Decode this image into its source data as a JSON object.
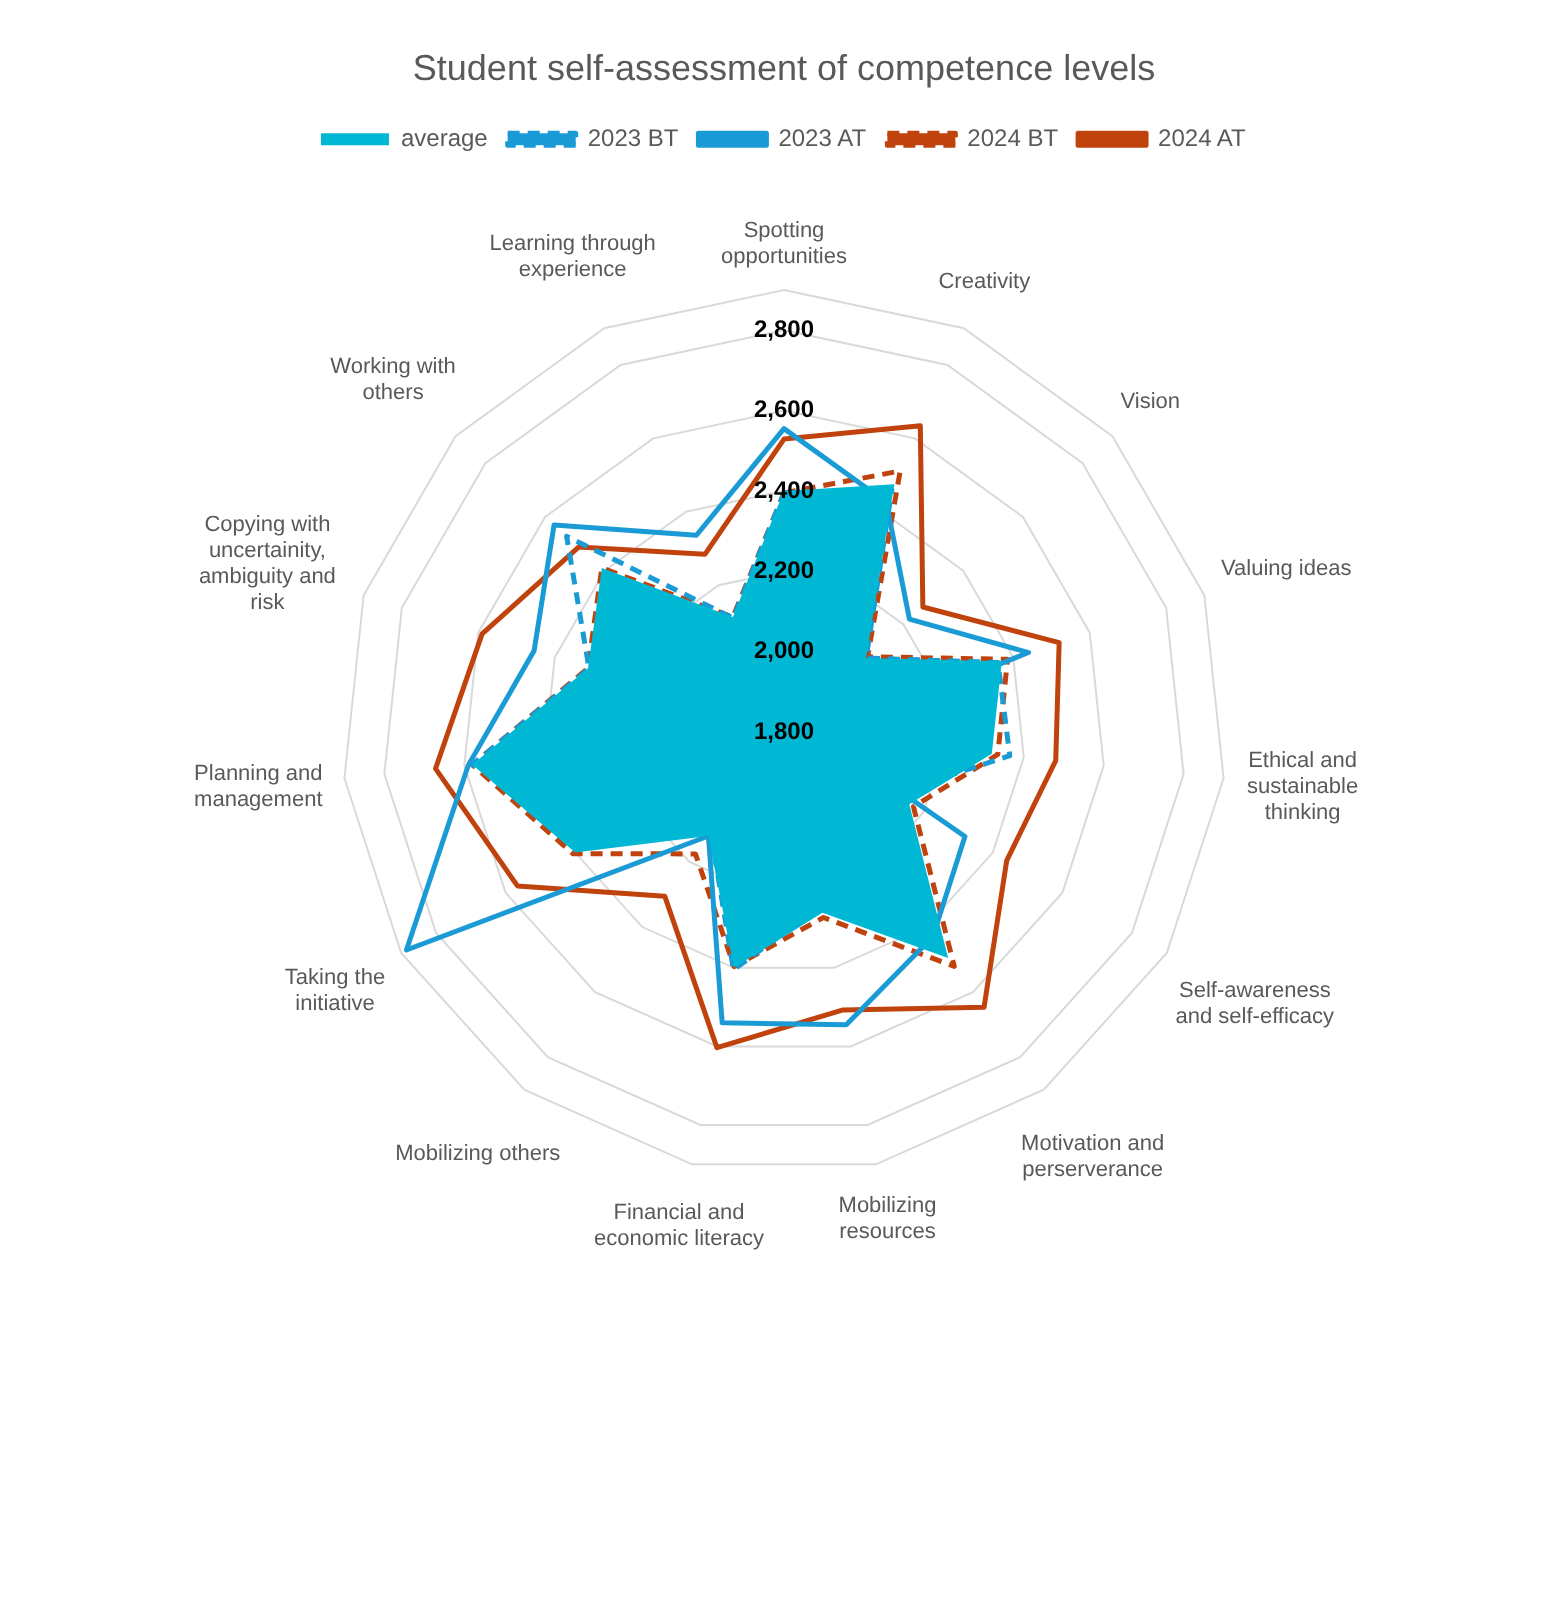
{
  "chart_data": {
    "type": "radar",
    "title": "Student self-assessment of competence levels",
    "categories": [
      "Spotting opportunities",
      "Creativity",
      "Vision",
      "Valuing ideas",
      "Ethical and sustainable thinking",
      "Self-awareness and self-efficacy",
      "Motivation and perserverance",
      "Mobilizing resources",
      "Financial and economic literacy",
      "Mobilizing others",
      "Taking the initiative",
      "Planning and management",
      "Copying with uncertainity, ambiguity and risk",
      "Working with others",
      "Learning through experience"
    ],
    "series": [
      {
        "name": "average",
        "type": "area",
        "color": "#00b8d4",
        "values": [
          2400,
          2475,
          2075,
          2370,
          2320,
          2160,
          2495,
          2260,
          2400,
          2120,
          2400,
          2580,
          2313,
          2410,
          2113
        ]
      },
      {
        "name": "2023 BT",
        "color": "#1a9bd6",
        "line_style": "dashed",
        "values": [
          2395,
          2460,
          2075,
          2360,
          2365,
          2110,
          2393,
          2242,
          2405,
          2110,
          2231,
          2580,
          2310,
          2528,
          2110
        ]
      },
      {
        "name": "2023 AT",
        "color": "#1a9bd6",
        "line_style": "solid",
        "values": [
          2555,
          2426,
          2220,
          2440,
          1890,
          2320,
          2430,
          2545,
          2540,
          2120,
          2885,
          2590,
          2454,
          2570,
          2336
        ]
      },
      {
        "name": "2024 BT",
        "color": "#c0430e",
        "line_style": "dashed",
        "values": [
          2395,
          2511,
          2080,
          2385,
          2335,
          2172,
          2521,
          2272,
          2397,
          2175,
          2406,
          2580,
          2313,
          2410,
          2113
        ]
      },
      {
        "name": "2024 AT",
        "color": "#c0430e",
        "line_style": "solid",
        "values": [
          2529,
          2634,
          2265,
          2520,
          2480,
          2440,
          2647,
          2507,
          2603,
          2305,
          2566,
          2672,
          2590,
          2488,
          2284
        ]
      }
    ],
    "ylim": [
      1800,
      2900
    ],
    "yticks": [
      {
        "value": 1800,
        "label": "1,800"
      },
      {
        "value": 2000,
        "label": "2,000"
      },
      {
        "value": 2200,
        "label": "2,200"
      },
      {
        "value": 2400,
        "label": "2,400"
      },
      {
        "value": 2600,
        "label": "2,600"
      },
      {
        "value": 2800,
        "label": "2,800"
      }
    ],
    "grid": true,
    "legend": "top",
    "marker": "none"
  }
}
